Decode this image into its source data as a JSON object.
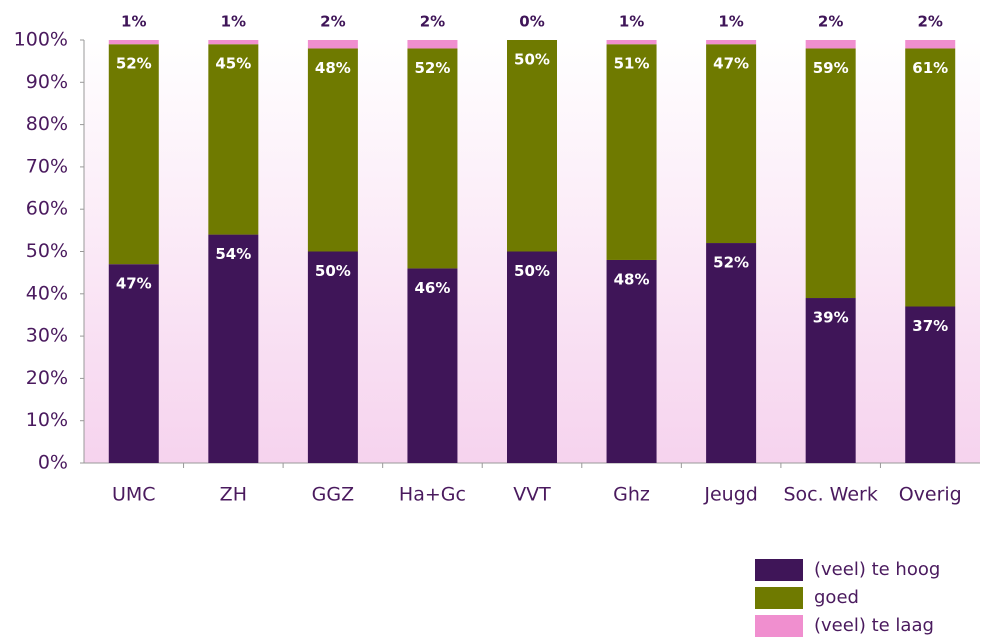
{
  "chart_data": {
    "type": "stacked_bar",
    "categories": [
      "UMC",
      "ZH",
      "GGZ",
      "Ha+Gc",
      "VVT",
      "Ghz",
      "Jeugd",
      "Soc. Werk",
      "Overig"
    ],
    "series": [
      {
        "name": "(veel) te hoog",
        "color": "#3f1558",
        "values": [
          47,
          54,
          50,
          46,
          50,
          48,
          52,
          39,
          37
        ],
        "value_labels": [
          "47%",
          "54%",
          "50%",
          "46%",
          "50%",
          "48%",
          "52%",
          "39%",
          "37%"
        ]
      },
      {
        "name": "goed",
        "color": "#6f7a00",
        "values": [
          52,
          45,
          48,
          52,
          50,
          51,
          47,
          59,
          61
        ],
        "value_labels": [
          "52%",
          "45%",
          "48%",
          "52%",
          "50%",
          "51%",
          "47%",
          "59%",
          "61%"
        ]
      },
      {
        "name": "(veel) te laag",
        "color": "#f08fcf",
        "values": [
          1,
          1,
          2,
          2,
          0,
          1,
          1,
          2,
          2
        ],
        "value_labels": [
          "1%",
          "1%",
          "2%",
          "2%",
          "0%",
          "1%",
          "1%",
          "2%",
          "2%"
        ]
      }
    ],
    "ylim": [
      0,
      100
    ],
    "yticks": [
      {
        "value": 0,
        "label": "0%"
      },
      {
        "value": 10,
        "label": "10%"
      },
      {
        "value": 20,
        "label": "20%"
      },
      {
        "value": 30,
        "label": "30%"
      },
      {
        "value": 40,
        "label": "40%"
      },
      {
        "value": 50,
        "label": "50%"
      },
      {
        "value": 60,
        "label": "60%"
      },
      {
        "value": 70,
        "label": "70%"
      },
      {
        "value": 80,
        "label": "80%"
      },
      {
        "value": 90,
        "label": "90%"
      },
      {
        "value": 100,
        "label": "100%"
      }
    ],
    "legend": "bottom-right"
  }
}
